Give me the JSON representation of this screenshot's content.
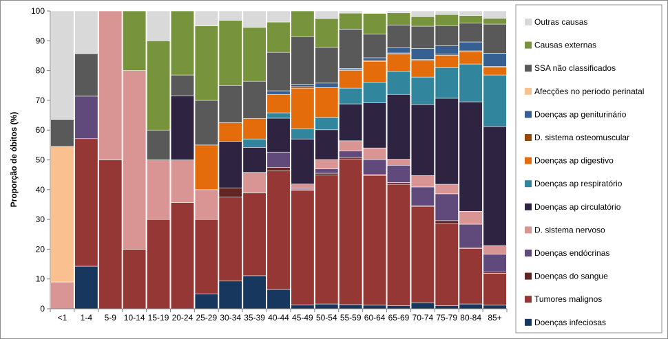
{
  "chart_data": {
    "type": "bar",
    "stacked": true,
    "ylabel": "Proporção de óbitos (%)",
    "ylim": [
      0,
      100
    ],
    "yticks": [
      0,
      10,
      20,
      30,
      40,
      50,
      60,
      70,
      80,
      90,
      100
    ],
    "grid": false,
    "legend_position": "right",
    "categories": [
      "<1",
      "1-4",
      "5-9",
      "10-14",
      "15-19",
      "20-24",
      "25-29",
      "30-34",
      "35-39",
      "40-44",
      "45-49",
      "50-54",
      "55-59",
      "60-64",
      "65-69",
      "70-74",
      "75-79",
      "80-84",
      "85+"
    ],
    "series": [
      {
        "name": "Doenças infeciosas",
        "color": "#17375E",
        "values": [
          0,
          14.3,
          0,
          0,
          0,
          0,
          5,
          9.3,
          11.1,
          6.5,
          1.3,
          1.6,
          1.4,
          1.2,
          1,
          2,
          1,
          1.6,
          1.2
        ]
      },
      {
        "name": "Tumores malignos",
        "color": "#953735",
        "values": [
          0,
          42.8,
          50,
          20,
          30,
          35.7,
          25,
          28.2,
          27.8,
          39.8,
          38.3,
          43.3,
          48.9,
          43.5,
          40.8,
          32.4,
          27.6,
          18.6,
          10.7
        ]
      },
      {
        "name": "Doenças do sangue",
        "color": "#632523",
        "values": [
          0,
          0,
          0,
          0,
          0,
          0,
          0,
          3.1,
          0,
          1.2,
          0.4,
          0.6,
          0.5,
          0.4,
          0.6,
          0.2,
          1,
          0.3,
          0.4
        ]
      },
      {
        "name": "Doenças endócrinas",
        "color": "#604A7B",
        "values": [
          0,
          14.3,
          0,
          0,
          0,
          0,
          0,
          0,
          0,
          5.1,
          0.4,
          1.5,
          2.2,
          5,
          5.8,
          6.3,
          9,
          7.9,
          6
        ]
      },
      {
        "name": "D. sistema nervoso",
        "color": "#D99594",
        "values": [
          9,
          0,
          50,
          60,
          20,
          14.3,
          10,
          0,
          6.9,
          0,
          1.5,
          3.1,
          3.4,
          3.9,
          2,
          3.8,
          3.2,
          4.3,
          2.9
        ]
      },
      {
        "name": "Doenças ap circulatório",
        "color": "#2E2442",
        "values": [
          0,
          0,
          0,
          0,
          0,
          21.5,
          0,
          15.6,
          8.4,
          11.4,
          15.1,
          10,
          12.4,
          15.2,
          21.8,
          23.9,
          28.9,
          36.8,
          40
        ]
      },
      {
        "name": "Doenças ap respiratório",
        "color": "#31859C",
        "values": [
          0,
          0,
          0,
          0,
          0,
          0,
          0,
          0,
          2.8,
          1.8,
          3.5,
          4.2,
          5.3,
          6.9,
          7.8,
          9.2,
          10.3,
          12.7,
          17.3
        ]
      },
      {
        "name": "Doenças ap digestivo",
        "color": "#E46C0A",
        "values": [
          0,
          0,
          0,
          0,
          0,
          0,
          15,
          6.3,
          6.9,
          6.2,
          13.6,
          10,
          5.9,
          6.9,
          5.8,
          5.6,
          4.1,
          4.1,
          2.6
        ]
      },
      {
        "name": "D. sistema osteomuscular",
        "color": "#984807",
        "values": [
          0,
          0,
          0,
          0,
          0,
          0,
          0,
          0,
          0,
          0,
          0.5,
          0,
          0.3,
          0.4,
          0.3,
          0.3,
          0.4,
          0.3,
          0.3
        ]
      },
      {
        "name": "Doenças ap geniturinário",
        "color": "#376092",
        "values": [
          0,
          0,
          0,
          0,
          0,
          0,
          0,
          0,
          0,
          1.2,
          0.8,
          1.5,
          0.4,
          0.9,
          1.7,
          3.7,
          2.8,
          3,
          4.4
        ]
      },
      {
        "name": "Afecções no período perinatal",
        "color": "#FAC090",
        "values": [
          45.5,
          0,
          0,
          0,
          0,
          0,
          0,
          0,
          0,
          0,
          0,
          0,
          0,
          0,
          0,
          0,
          0,
          0,
          0
        ]
      },
      {
        "name": "SSA não classificados",
        "color": "#595959",
        "values": [
          9.1,
          14.3,
          0,
          0,
          10,
          7,
          15,
          12.5,
          12.5,
          12.9,
          16,
          12,
          13.2,
          8,
          7.7,
          7.5,
          6.8,
          6.4,
          9.8
        ]
      },
      {
        "name": "Causas externas",
        "color": "#77933C",
        "values": [
          0,
          0,
          0,
          20,
          30,
          21.5,
          25,
          21.9,
          18.1,
          10.2,
          8.6,
          9.7,
          5.4,
          6.9,
          4.1,
          3.2,
          3.7,
          2.5,
          2
        ]
      },
      {
        "name": "Outras causas",
        "color": "#D9D9D9",
        "values": [
          36.4,
          14.3,
          0,
          0,
          10,
          0,
          5,
          3.1,
          5.5,
          3.7,
          0,
          2.5,
          0.7,
          0.2,
          0.6,
          1.9,
          1.2,
          1.5,
          2.4
        ]
      }
    ]
  }
}
